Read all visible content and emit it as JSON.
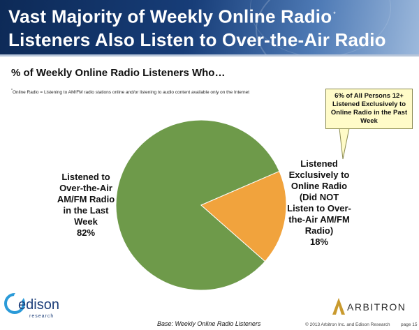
{
  "header": {
    "title_line1": "Vast Majority of Weekly Online Radio",
    "title_mark": "*",
    "title_line2": "Listeners Also Listen to Over-the-Air Radio"
  },
  "subtitle": "% of Weekly Online Radio Listeners Who…",
  "footnote": {
    "mark": "*",
    "text": "Online Radio = Listening to AM/FM radio stations online and/or listening to audio content available only on the Internet"
  },
  "callout": "6% of All Persons 12+ Listened Exclusively to Online Radio in the Past Week",
  "chart_data": {
    "type": "pie",
    "title": "% of Weekly Online Radio Listeners Who…",
    "slices": [
      {
        "label": "Listened to Over-the-Air AM/FM Radio in the Last Week",
        "label_lines": [
          "Listened to",
          "Over-the-Air",
          "AM/FM Radio",
          "in the Last",
          "Week"
        ],
        "value": 82,
        "value_label": "82%",
        "color": "#6e9a4a"
      },
      {
        "label": "Listened Exclusively to Online Radio (Did NOT Listen to Over-the-Air AM/FM Radio)",
        "label_lines": [
          "Listened",
          "Exclusively to",
          "Online Radio",
          "(Did NOT",
          "Listen to Over-",
          "the-Air AM/FM",
          "Radio)"
        ],
        "value": 18,
        "value_label": "18%",
        "color": "#f1a33d"
      }
    ]
  },
  "footer": {
    "base_note": "Base: Weekly Online Radio Listeners",
    "copyright": "© 2013 Arbitron Inc. and Edison Research",
    "page": "page 15"
  },
  "logos": {
    "edison_name": "edison",
    "edison_sub": "research",
    "arbitron_name": "ARBITRON"
  },
  "colors": {
    "banner_dark": "#0d2a57",
    "callout_bg": "#fffbc8",
    "edison_blue": "#2a9ad8",
    "arbitron_gold": "#c99a2e"
  }
}
